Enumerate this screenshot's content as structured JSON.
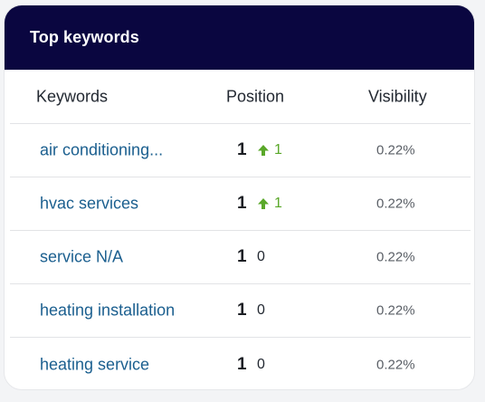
{
  "widget": {
    "title": "Top keywords"
  },
  "table": {
    "headers": {
      "keywords": "Keywords",
      "position": "Position",
      "visibility": "Visibility"
    },
    "rows": [
      {
        "keyword": "air conditioning...",
        "position": "1",
        "change": "1",
        "change_direction": "up",
        "visibility": "0.22%"
      },
      {
        "keyword": "hvac services",
        "position": "1",
        "change": "1",
        "change_direction": "up",
        "visibility": "0.22%"
      },
      {
        "keyword": "service N/A",
        "position": "1",
        "change": "0",
        "change_direction": "none",
        "visibility": "0.22%"
      },
      {
        "keyword": "heating installation",
        "position": "1",
        "change": "0",
        "change_direction": "none",
        "visibility": "0.22%"
      },
      {
        "keyword": "heating service",
        "position": "1",
        "change": "0",
        "change_direction": "none",
        "visibility": "0.22%"
      }
    ]
  },
  "colors": {
    "header_bg": "#0a0640",
    "link": "#1b5f8f",
    "positive_change": "#5aa82a"
  },
  "icons": {
    "change_up": "arrow-up-icon"
  }
}
